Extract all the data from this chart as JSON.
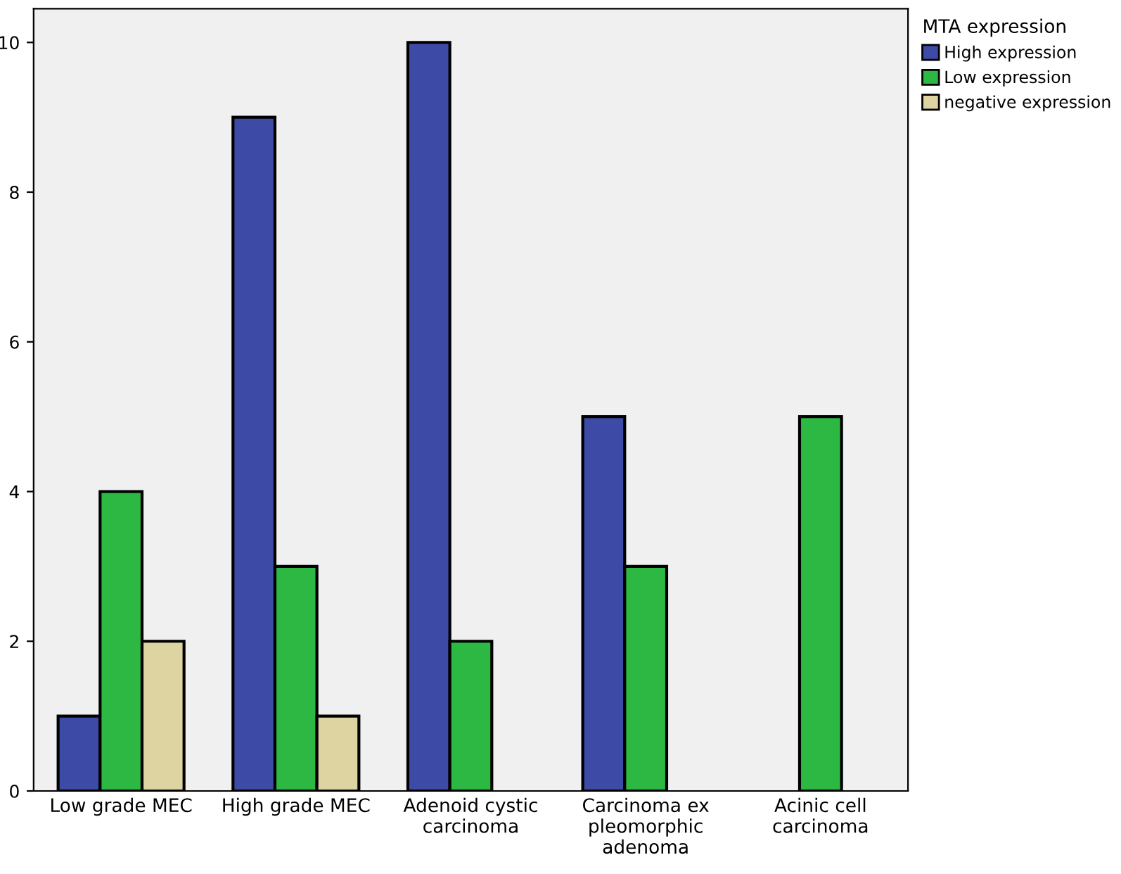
{
  "chart_data": {
    "type": "bar",
    "legend_title": "MTA expression",
    "legend": "right",
    "categories": [
      "Low grade MEC",
      "High grade MEC",
      "Adenoid cystic\ncarcinoma",
      "Carcinoma ex\npleomorphic\nadenoma",
      "Acinic cell\ncarcinoma"
    ],
    "series": [
      {
        "name": "High expression",
        "color": "#3d4aa6",
        "values": [
          1,
          9,
          10,
          5,
          null
        ]
      },
      {
        "name": "Low expression",
        "color": "#2db843",
        "values": [
          4,
          3,
          2,
          3,
          5
        ]
      },
      {
        "name": "negative expression",
        "color": "#ddd4a2",
        "values": [
          2,
          1,
          null,
          null,
          null
        ]
      }
    ],
    "ylim": [
      0,
      10.45
    ],
    "yticks": [
      0,
      2,
      4,
      6,
      8,
      10
    ],
    "grid": false
  }
}
